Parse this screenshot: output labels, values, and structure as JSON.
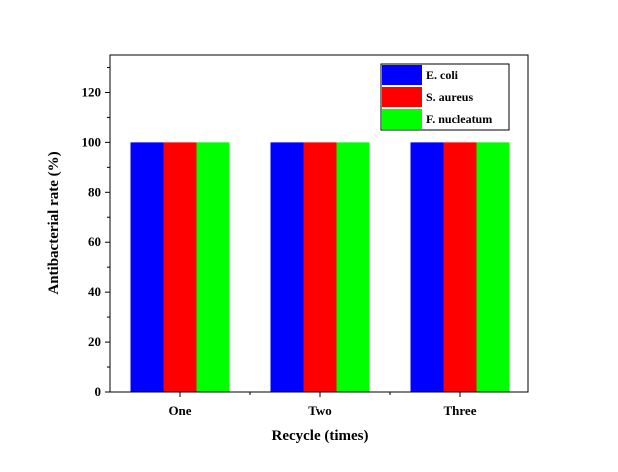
{
  "chart_data": {
    "type": "bar",
    "title": "",
    "xlabel": "Recycle (times)",
    "ylabel": "Antibacterial rate (%)",
    "categories": [
      "One",
      "Two",
      "Three"
    ],
    "ylim": [
      0,
      135
    ],
    "yticks": [
      0,
      20,
      40,
      60,
      80,
      100,
      120
    ],
    "grid": false,
    "legend_position": "top-right",
    "series": [
      {
        "name": "E. coli",
        "values": [
          100,
          100,
          100
        ],
        "color": "#0000ff"
      },
      {
        "name": "S. aureus",
        "values": [
          100,
          100,
          100
        ],
        "color": "#ff0000"
      },
      {
        "name": "F. nucleatum",
        "values": [
          100,
          100,
          100
        ],
        "color": "#00ff00"
      }
    ]
  }
}
